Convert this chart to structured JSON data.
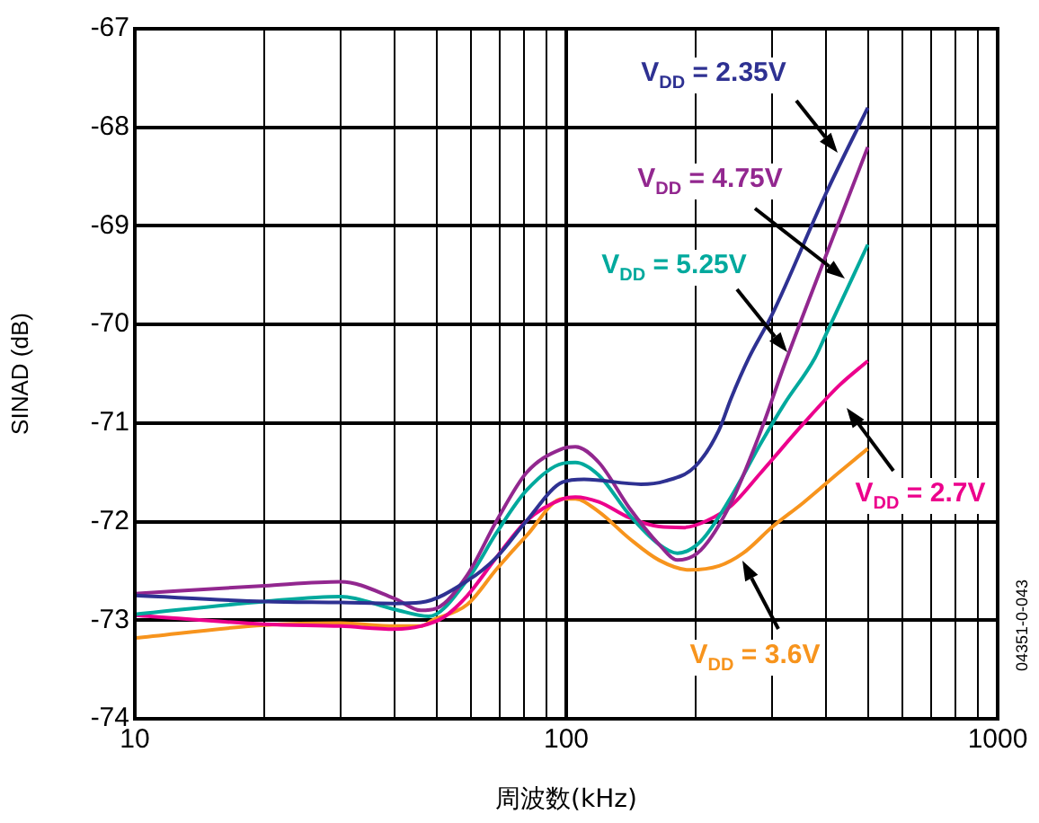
{
  "chart_data": {
    "type": "line",
    "xlabel": "周波数(kHz)",
    "ylabel": "SINAD (dB)",
    "log": "x",
    "grid": true,
    "legend": false,
    "line_style": "solid",
    "marker": "none",
    "xlim": [
      10,
      1000
    ],
    "xticks": [
      10,
      {
        "value": 20,
        "label": null
      },
      {
        "value": 30,
        "label": null
      },
      {
        "value": 40,
        "label": null
      },
      {
        "value": 50,
        "label": null
      },
      {
        "value": 60,
        "label": null
      },
      {
        "value": 70,
        "label": null
      },
      {
        "value": 80,
        "label": null
      },
      {
        "value": 90,
        "label": null
      },
      100,
      {
        "value": 200,
        "label": null
      },
      {
        "value": 300,
        "label": null
      },
      {
        "value": 400,
        "label": null
      },
      {
        "value": 500,
        "label": null
      },
      {
        "value": 600,
        "label": null
      },
      {
        "value": 700,
        "label": null
      },
      {
        "value": 800,
        "label": null
      },
      {
        "value": 900,
        "label": null
      },
      1000
    ],
    "ylim": [
      -74,
      -67
    ],
    "yticks": [
      -74,
      -73,
      -72,
      -71,
      -70,
      -69,
      -68,
      -67
    ],
    "series": [
      {
        "name": "V$_{DD}$ = 2.35V",
        "color": "#2e3192",
        "x": [
          10,
          20,
          30,
          40,
          46,
          59,
          69,
          81,
          98,
          110,
          149,
          169,
          199,
          226,
          241,
          265,
          300,
          400,
          500
        ],
        "values": [
          -72.75,
          -72.81,
          -72.82,
          -72.83,
          -72.82,
          -72.6,
          -72.36,
          -71.99,
          -71.6,
          -71.57,
          -71.62,
          -71.59,
          -71.44,
          -71.07,
          -70.75,
          -70.34,
          -69.9,
          -68.67,
          -67.8
        ]
      },
      {
        "name": "V$_{DD}$ = 4.75V",
        "color": "#92278f",
        "x": [
          10,
          20,
          30,
          40,
          46,
          50,
          59,
          69,
          81,
          98,
          105,
          119,
          140,
          164,
          181,
          205,
          241,
          283,
          321,
          400,
          500
        ],
        "values": [
          -72.73,
          -72.65,
          -72.61,
          -72.78,
          -72.9,
          -72.88,
          -72.54,
          -71.99,
          -71.5,
          -71.26,
          -71.24,
          -71.4,
          -71.86,
          -72.23,
          -72.39,
          -72.29,
          -71.81,
          -71.07,
          -70.4,
          -69.3,
          -68.2
        ]
      },
      {
        "name": "V$_{DD}$ = 5.25V",
        "color": "#00a99d",
        "x": [
          10,
          20,
          30,
          40,
          48,
          59,
          69,
          81,
          98,
          105,
          119,
          140,
          164,
          181,
          205,
          241,
          283,
          321,
          377,
          400,
          500
        ],
        "values": [
          -72.94,
          -72.81,
          -72.76,
          -72.89,
          -72.96,
          -72.59,
          -72.11,
          -71.68,
          -71.41,
          -71.4,
          -71.53,
          -71.93,
          -72.23,
          -72.32,
          -72.2,
          -71.75,
          -71.2,
          -70.8,
          -70.34,
          -70.1,
          -69.19
        ]
      },
      {
        "name": "V$_{DD}$ = 2.7V",
        "color": "#ec008c",
        "x": [
          10,
          20,
          30,
          40,
          46,
          52,
          59,
          69,
          81,
          98,
          105,
          119,
          140,
          164,
          187,
          212,
          241,
          283,
          354,
          429,
          500
        ],
        "values": [
          -72.95,
          -73.04,
          -73.06,
          -73.09,
          -73.06,
          -72.97,
          -72.75,
          -72.36,
          -71.99,
          -71.77,
          -71.75,
          -71.8,
          -71.96,
          -72.05,
          -72.06,
          -71.99,
          -71.84,
          -71.5,
          -71.01,
          -70.62,
          -70.37
        ]
      },
      {
        "name": "V$_{DD}$ = 3.6V",
        "color": "#f7941d",
        "x": [
          10,
          20,
          30,
          40,
          46,
          49,
          59,
          69,
          81,
          98,
          105,
          119,
          140,
          164,
          193,
          226,
          257,
          301,
          354,
          429,
          500
        ],
        "values": [
          -73.18,
          -73.05,
          -73.03,
          -73.06,
          -73.06,
          -73.0,
          -72.84,
          -72.48,
          -72.14,
          -71.77,
          -71.77,
          -71.9,
          -72.17,
          -72.39,
          -72.49,
          -72.45,
          -72.32,
          -72.05,
          -71.81,
          -71.5,
          -71.26
        ]
      }
    ],
    "annotations": [
      "04351-0-043"
    ]
  }
}
